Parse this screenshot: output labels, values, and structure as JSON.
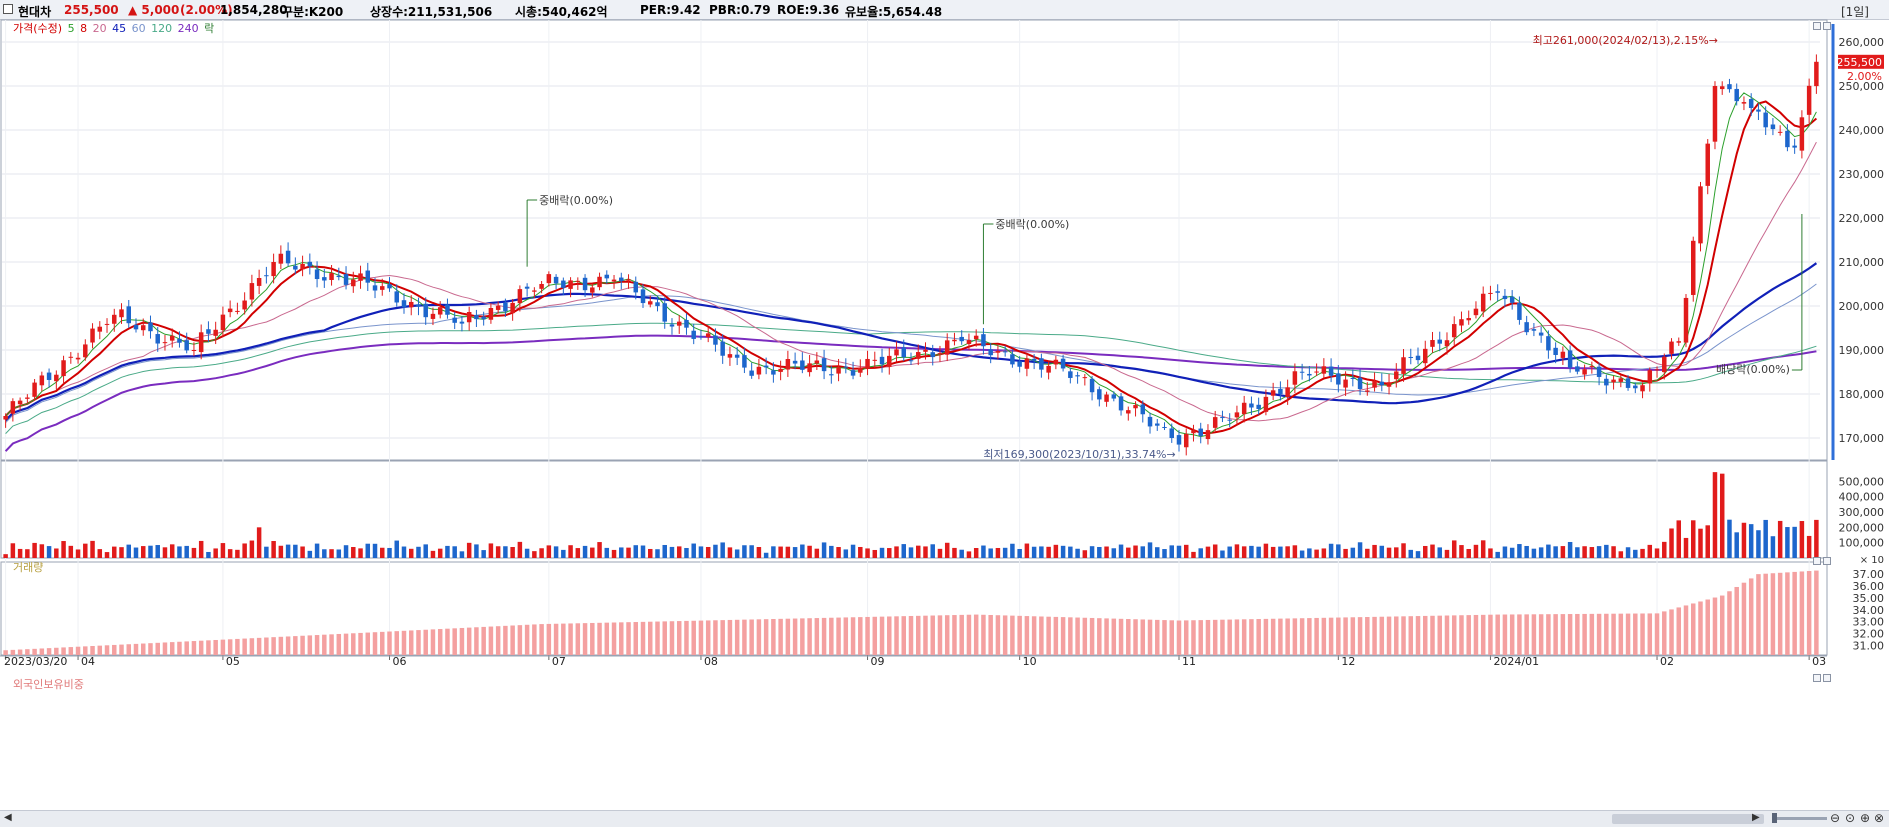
{
  "header": {
    "name": "현대차",
    "price": "255,500",
    "change": "▲ 5,000",
    "change_pct": "(2.00%)",
    "volume": "1,854,280",
    "market": "구분:K200",
    "shares": "상장수:211,531,506",
    "mcap": "시총:540,462억",
    "per": "PER:9.42",
    "pbr": "PBR:0.79",
    "roe": "ROE:9.36",
    "reserve": "유보율:5,654.48",
    "period": "[1일]"
  },
  "legend": {
    "price": "가격(수정)",
    "ma": [
      "5",
      "8",
      "20",
      "45",
      "60",
      "120",
      "240"
    ],
    "event": "락",
    "volume": "거래량",
    "foreign": "외국인보유비중"
  },
  "colors": {
    "up": "#e11b1b",
    "down": "#1d66cc",
    "ma5": "#2ca02c",
    "ma8": "#d10000",
    "ma20": "#c9698f",
    "ma45": "#1020b8",
    "ma60": "#7a94cc",
    "ma120": "#4aaa88",
    "ma240": "#7a2cbf",
    "event": "#2e7d32",
    "foreign_bar": "#f4a0a0"
  },
  "chart_data": [
    {
      "type": "candlestick",
      "x_ticks": [
        "2023/03/20",
        "04",
        "05",
        "06",
        "07",
        "08",
        "09",
        "10",
        "11",
        "12",
        "2024/01",
        "02",
        "03"
      ],
      "y_ticks": [
        "260,000",
        "250,000",
        "240,000",
        "230,000",
        "220,000",
        "210,000",
        "200,000",
        "190,000",
        "180,000",
        "170,000"
      ],
      "ylim": [
        165000,
        265000
      ],
      "last_price_label": "255,500",
      "last_pct_label": "2.00%",
      "key_points": [
        {
          "date": "2023/03/20",
          "close": 175000
        },
        {
          "date": "2023/04/10",
          "close": 198000
        },
        {
          "date": "2023/04/25",
          "close": 190000
        },
        {
          "date": "2023/05/10",
          "close": 210000
        },
        {
          "date": "2023/05/25",
          "close": 206000
        },
        {
          "date": "2023/06/15",
          "close": 196000
        },
        {
          "date": "2023/06/30",
          "close": 205000
        },
        {
          "date": "2023/07/14",
          "close": 206000
        },
        {
          "date": "2023/08/09",
          "close": 186000
        },
        {
          "date": "2023/08/31",
          "close": 186000
        },
        {
          "date": "2023/09/20",
          "close": 192000
        },
        {
          "date": "2023/10/12",
          "close": 184000
        },
        {
          "date": "2023/10/31",
          "close": 170000
        },
        {
          "date": "2023/11/10",
          "close": 174000
        },
        {
          "date": "2023/11/24",
          "close": 185000
        },
        {
          "date": "2023/12/11",
          "close": 182000
        },
        {
          "date": "2023/12/26",
          "close": 197000
        },
        {
          "date": "2024/01/02",
          "close": 203000
        },
        {
          "date": "2024/01/16",
          "close": 186000
        },
        {
          "date": "2024/01/30",
          "close": 182000
        },
        {
          "date": "2024/02/06",
          "close": 192000
        },
        {
          "date": "2024/02/13",
          "close": 250000
        },
        {
          "date": "2024/02/20",
          "close": 245000
        },
        {
          "date": "2024/02/28",
          "close": 236000
        },
        {
          "date": "2024/03/04",
          "close": 255500
        }
      ],
      "annotations": [
        {
          "text": "최고261,000(2024/02/13),2.15%→",
          "kind": "high"
        },
        {
          "text": "최저169,300(2023/10/31),33.74%→",
          "kind": "low"
        },
        {
          "text": "중배락(0.00%)",
          "date": "2023/06/28"
        },
        {
          "text": "중배락(0.00%)",
          "date": "2023/09/25"
        },
        {
          "text": "배당락(0.00%)",
          "date": "2024/02/29"
        }
      ]
    },
    {
      "type": "bar",
      "name": "거래량",
      "y_ticks": [
        "500,000",
        "400,000",
        "300,000",
        "200,000",
        "100,000"
      ],
      "unit_label": "× 10",
      "ylim": [
        0,
        600000
      ],
      "spikes": [
        {
          "date": "2023/05/08",
          "value": 200000
        },
        {
          "date": "2024/02/13",
          "value": 560000
        },
        {
          "date": "2024/02/14",
          "value": 550000
        }
      ]
    },
    {
      "type": "bar",
      "name": "외국인보유비중",
      "y_ticks": [
        "37.00",
        "36.00",
        "35.00",
        "34.00",
        "33.00",
        "32.00",
        "31.00"
      ],
      "ylim": [
        30.2,
        37.6
      ],
      "key_points": [
        {
          "date": "2023/03/20",
          "value": 30.6
        },
        {
          "date": "2023/06/30",
          "value": 32.8
        },
        {
          "date": "2023/09/22",
          "value": 33.6
        },
        {
          "date": "2023/11/01",
          "value": 33.1
        },
        {
          "date": "2024/01/02",
          "value": 33.6
        },
        {
          "date": "2024/02/01",
          "value": 33.7
        },
        {
          "date": "2024/02/14",
          "value": 35.2
        },
        {
          "date": "2024/02/21",
          "value": 37.0
        },
        {
          "date": "2024/03/04",
          "value": 37.3
        }
      ]
    }
  ]
}
